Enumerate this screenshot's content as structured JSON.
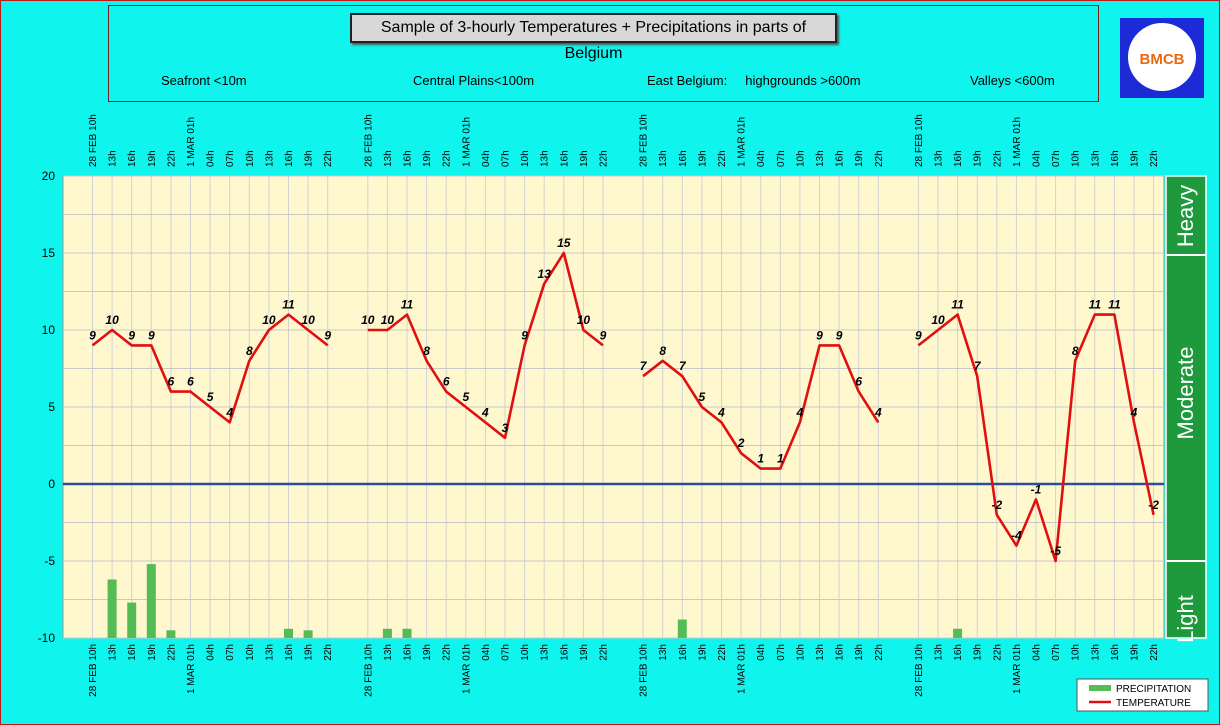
{
  "title": "Sample of 3-hourly Temperatures + Precipitations in parts of Belgium",
  "regions": [
    "Seafront <10m",
    "Central Plains<100m",
    "East Belgium:     highgrounds >600m",
    "Valleys <600m"
  ],
  "logo_text": "BMCB",
  "colors": {
    "background": "#0ff5ee",
    "plot_bg": "#fff8cf",
    "temperature": "#e01010",
    "precipitation": "#55bb55",
    "band": "#1e9a3c",
    "zero_line": "#2a4f9a"
  },
  "chart_data": {
    "type": "line",
    "title": "Sample of 3-hourly Temperatures + Precipitations in parts of Belgium",
    "ylim": [
      -10,
      20
    ],
    "yticks": [
      -10,
      -5,
      0,
      5,
      10,
      15,
      20
    ],
    "grid": true,
    "bands": [
      "Light",
      "Moderate",
      "Heavy"
    ],
    "categories": [
      "28 FEB 10h",
      "13h",
      "16h",
      "19h",
      "22h",
      "1 MAR 01h",
      "04h",
      "07h",
      "10h",
      "13h",
      "16h",
      "19h",
      "22h"
    ],
    "categories_bottom": [
      "28 FEB 10h",
      "13h",
      "16h",
      "19h",
      "22h",
      "1 MAR 01h",
      "04h",
      "07h",
      "10h",
      "13h",
      "16h",
      "19h",
      "22h"
    ],
    "groups": [
      {
        "region": "Seafront <10m",
        "temperature": [
          9,
          10,
          9,
          9,
          6,
          6,
          5,
          4,
          8,
          10,
          11,
          10,
          9
        ],
        "labels": [
          "9",
          "10",
          "9",
          "9",
          "6",
          "6",
          "5",
          "4",
          "8",
          "10",
          "11",
          "10",
          "9"
        ],
        "precipitation": [
          0,
          -6.2,
          -7.7,
          -5.2,
          -9.5,
          0,
          0,
          0,
          0,
          0,
          -9.4,
          -9.5,
          0
        ]
      },
      {
        "region": "Central Plains<100m",
        "temperature": [
          10,
          10,
          11,
          8,
          6,
          5,
          4,
          3,
          9,
          13,
          15,
          10,
          9
        ],
        "labels": [
          "10",
          "10",
          "11",
          "8",
          "6",
          "5",
          "4",
          "3",
          "9",
          "13",
          "15",
          "10",
          "9"
        ],
        "precipitation": [
          0,
          -9.4,
          -9.4,
          0,
          0,
          0,
          0,
          0,
          0,
          0,
          0,
          0,
          0
        ]
      },
      {
        "region": "East Belgium: highgrounds >600m",
        "temperature": [
          7,
          8,
          7,
          5,
          4,
          2,
          1,
          1,
          4,
          9,
          9,
          6,
          4
        ],
        "labels": [
          "7",
          "8",
          "7",
          "5",
          "4",
          "2",
          "1",
          "1",
          "4",
          "9",
          "9",
          "6",
          "4"
        ],
        "precipitation": [
          0,
          0,
          -8.8,
          0,
          0,
          0,
          0,
          0,
          0,
          0,
          0,
          0,
          0
        ]
      },
      {
        "region": "Valleys <600m",
        "temperature": [
          9,
          10,
          11,
          7,
          -2,
          -4,
          -1,
          -5,
          8,
          11,
          11,
          4,
          -2
        ],
        "labels": [
          "9",
          "10",
          "11",
          "7",
          "-2",
          "-4",
          "-1",
          "-5",
          "8",
          "11",
          "11",
          "4",
          "-2"
        ],
        "precipitation": [
          0,
          0,
          -9.4,
          0,
          0,
          0,
          0,
          0,
          0,
          0,
          0,
          0,
          0
        ]
      }
    ],
    "legend": [
      "PRECIPITATION",
      "TEMPERATURE"
    ],
    "legend_position": "bottom-right"
  }
}
